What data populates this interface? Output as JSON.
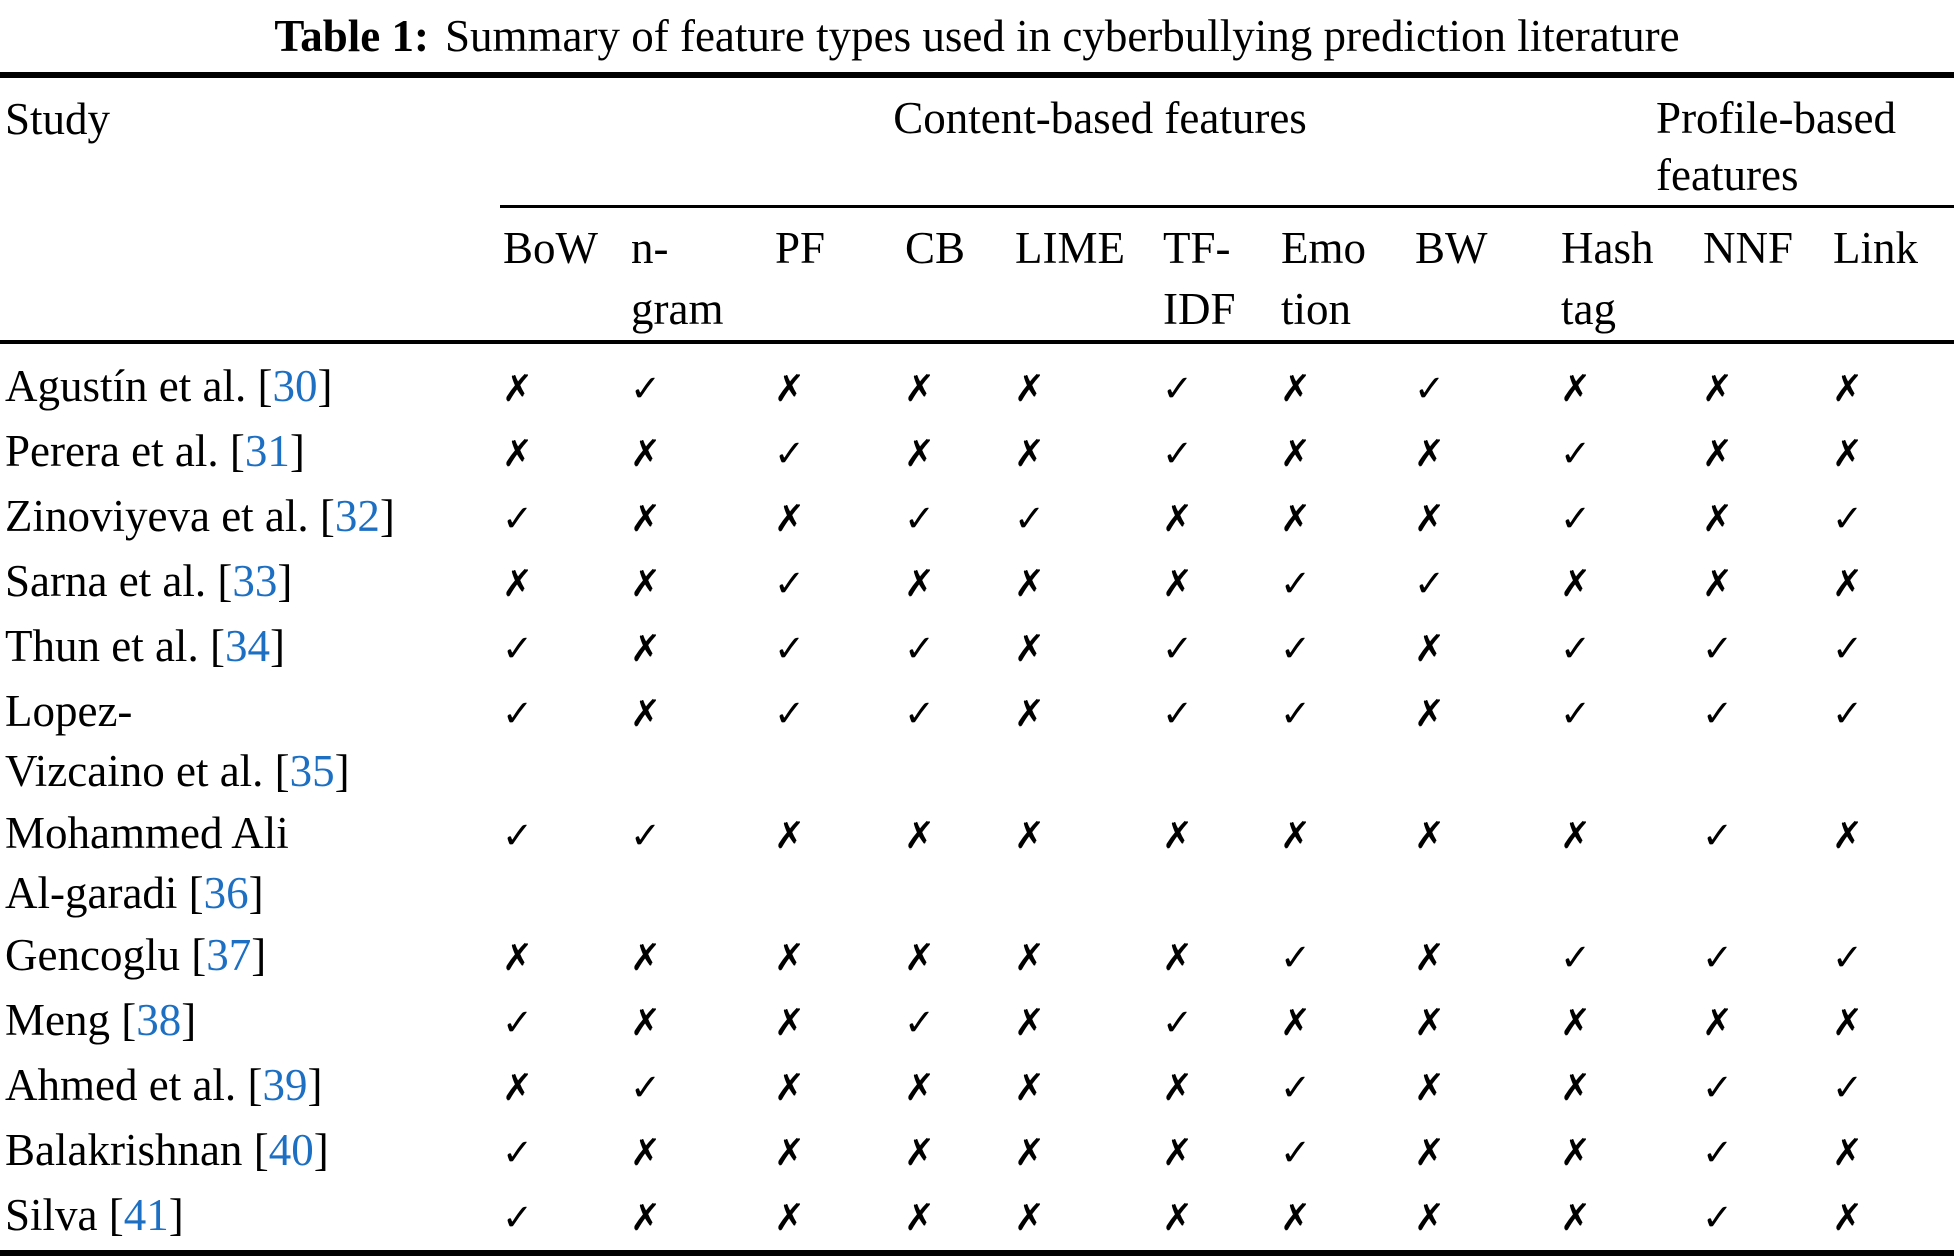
{
  "page": {
    "background": "#ffffff",
    "text_color": "#000000",
    "citation_color": "#1c6fc2"
  },
  "title": {
    "label": "Table 1:",
    "text": "Summary of feature types used in cyberbullying prediction literature"
  },
  "table": {
    "study_header": "Study",
    "group_headers": [
      {
        "label": "Content-based features",
        "columns": 9
      },
      {
        "label": "Profile-based features",
        "columns": 2
      }
    ],
    "column_headers": [
      "BoW",
      "n-\ngram",
      "PF",
      "CB",
      "LIME",
      "TF-\nIDF",
      "Emo\ntion",
      "BW",
      "Hash\ntag",
      "NNF",
      "Link"
    ],
    "marks": {
      "check": "✓",
      "cross": "✗"
    },
    "brackets": {
      "open": "[",
      "close": "]"
    },
    "rows": [
      {
        "study": "Agustín et al.",
        "ref": "30",
        "features": [
          "cross",
          "check",
          "cross",
          "cross",
          "cross",
          "check",
          "cross",
          "check",
          "cross",
          "cross",
          "cross"
        ]
      },
      {
        "study": "Perera et al.",
        "ref": "31",
        "features": [
          "cross",
          "cross",
          "check",
          "cross",
          "cross",
          "check",
          "cross",
          "cross",
          "check",
          "cross",
          "cross"
        ]
      },
      {
        "study": "Zinoviyeva et al.",
        "ref": "32",
        "features": [
          "check",
          "cross",
          "cross",
          "check",
          "check",
          "cross",
          "cross",
          "cross",
          "check",
          "cross",
          "check"
        ]
      },
      {
        "study": "Sarna et al.",
        "ref": "33",
        "features": [
          "cross",
          "cross",
          "check",
          "cross",
          "cross",
          "cross",
          "check",
          "check",
          "cross",
          "cross",
          "cross"
        ]
      },
      {
        "study": "Thun et al.",
        "ref": "34",
        "features": [
          "check",
          "cross",
          "check",
          "check",
          "cross",
          "check",
          "check",
          "cross",
          "check",
          "check",
          "check"
        ]
      },
      {
        "study": "Lopez-\nVizcaino et al.",
        "ref": "35",
        "features": [
          "check",
          "cross",
          "check",
          "check",
          "cross",
          "check",
          "check",
          "cross",
          "check",
          "check",
          "check"
        ]
      },
      {
        "study": "Mohammed Ali\nAl-garadi",
        "ref": "36",
        "features": [
          "check",
          "check",
          "cross",
          "cross",
          "cross",
          "cross",
          "cross",
          "cross",
          "cross",
          "check",
          "cross"
        ]
      },
      {
        "study": "Gencoglu",
        "ref": "37",
        "features": [
          "cross",
          "cross",
          "cross",
          "cross",
          "cross",
          "cross",
          "check",
          "cross",
          "check",
          "check",
          "check"
        ]
      },
      {
        "study": "Meng",
        "ref": "38",
        "features": [
          "check",
          "cross",
          "cross",
          "check",
          "cross",
          "check",
          "cross",
          "cross",
          "cross",
          "cross",
          "cross"
        ]
      },
      {
        "study": "Ahmed et al.",
        "ref": "39",
        "features": [
          "cross",
          "check",
          "cross",
          "cross",
          "cross",
          "cross",
          "check",
          "cross",
          "cross",
          "check",
          "check"
        ]
      },
      {
        "study": "Balakrishnan",
        "ref": "40",
        "features": [
          "check",
          "cross",
          "cross",
          "cross",
          "cross",
          "cross",
          "check",
          "cross",
          "cross",
          "check",
          "cross"
        ]
      },
      {
        "study": "Silva",
        "ref": "41",
        "features": [
          "check",
          "cross",
          "cross",
          "cross",
          "cross",
          "cross",
          "cross",
          "cross",
          "cross",
          "check",
          "cross"
        ]
      }
    ]
  }
}
